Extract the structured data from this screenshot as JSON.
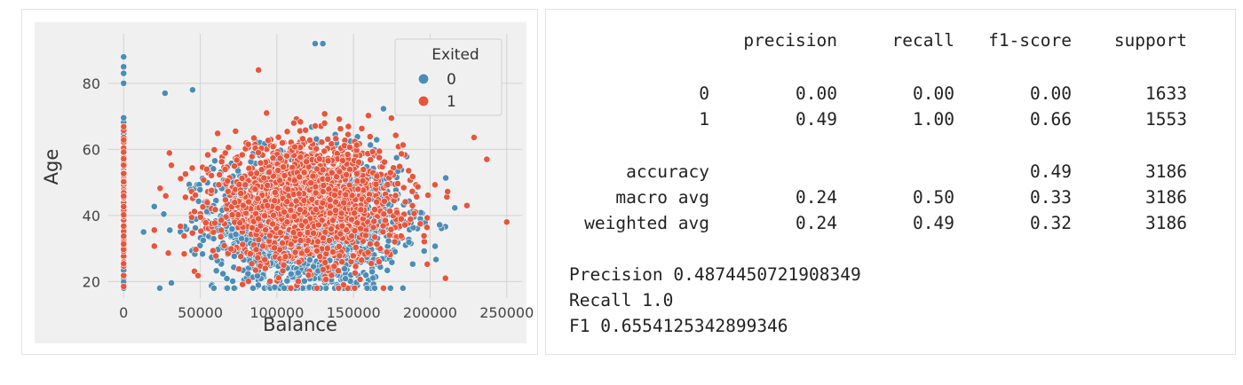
{
  "chart_data": {
    "type": "scatter",
    "xlabel": "Balance",
    "ylabel": "Age",
    "xlim": [
      -10000,
      260000
    ],
    "ylim": [
      15,
      95
    ],
    "xticks": [
      0,
      50000,
      100000,
      150000,
      200000,
      250000
    ],
    "yticks": [
      20,
      40,
      60,
      80
    ],
    "grid": true,
    "legend": {
      "title": "Exited",
      "placement": "top-right",
      "entries": [
        "0",
        "1"
      ]
    },
    "series": [
      {
        "name": "0",
        "color": "#4c8db5"
      },
      {
        "name": "1",
        "color": "#e8553c"
      }
    ],
    "approximate_clusters": [
      {
        "series": "0",
        "count": 1900,
        "x_mean": 120000,
        "x_sd": 30000,
        "y_mean": 38,
        "y_sd": 10
      },
      {
        "series": "0",
        "count": 260,
        "x_mean": 0,
        "x_sd": 0,
        "y_mean": 38,
        "y_sd": 11
      },
      {
        "series": "1",
        "count": 1700,
        "x_mean": 120000,
        "x_sd": 30000,
        "y_mean": 44,
        "y_sd": 9
      },
      {
        "series": "1",
        "count": 180,
        "x_mean": 0,
        "x_sd": 0,
        "y_mean": 45,
        "y_sd": 10
      }
    ],
    "notable_points": [
      {
        "series": "0",
        "x": 125000,
        "y": 92
      },
      {
        "series": "0",
        "x": 130000,
        "y": 92
      },
      {
        "series": "0",
        "x": 0,
        "y": 88
      },
      {
        "series": "0",
        "x": 0,
        "y": 85
      },
      {
        "series": "0",
        "x": 0,
        "y": 83
      },
      {
        "series": "0",
        "x": 0,
        "y": 80
      },
      {
        "series": "1",
        "x": 88000,
        "y": 84
      },
      {
        "series": "1",
        "x": 250000,
        "y": 38
      },
      {
        "series": "1",
        "x": 237000,
        "y": 57
      },
      {
        "series": "0",
        "x": 27000,
        "y": 77
      },
      {
        "series": "0",
        "x": 45000,
        "y": 78
      },
      {
        "series": "0",
        "x": 13000,
        "y": 35
      },
      {
        "series": "1",
        "x": 224000,
        "y": 43
      },
      {
        "series": "1",
        "x": 210000,
        "y": 21
      }
    ]
  },
  "report": {
    "header": [
      "precision",
      "recall",
      "f1-score",
      "support"
    ],
    "rows": [
      {
        "label": "0",
        "precision": "0.00",
        "recall": "0.00",
        "f1": "0.00",
        "support": "1633"
      },
      {
        "label": "1",
        "precision": "0.49",
        "recall": "1.00",
        "f1": "0.66",
        "support": "1553"
      }
    ],
    "accuracy": {
      "label": "accuracy",
      "f1": "0.49",
      "support": "3186"
    },
    "avgs": [
      {
        "label": "macro avg",
        "precision": "0.24",
        "recall": "0.50",
        "f1": "0.33",
        "support": "3186"
      },
      {
        "label": "weighted avg",
        "precision": "0.24",
        "recall": "0.49",
        "f1": "0.32",
        "support": "3186"
      }
    ],
    "summary": [
      "Precision 0.4874450721908349",
      "Recall 1.0",
      "F1 0.6554125342899346"
    ]
  }
}
